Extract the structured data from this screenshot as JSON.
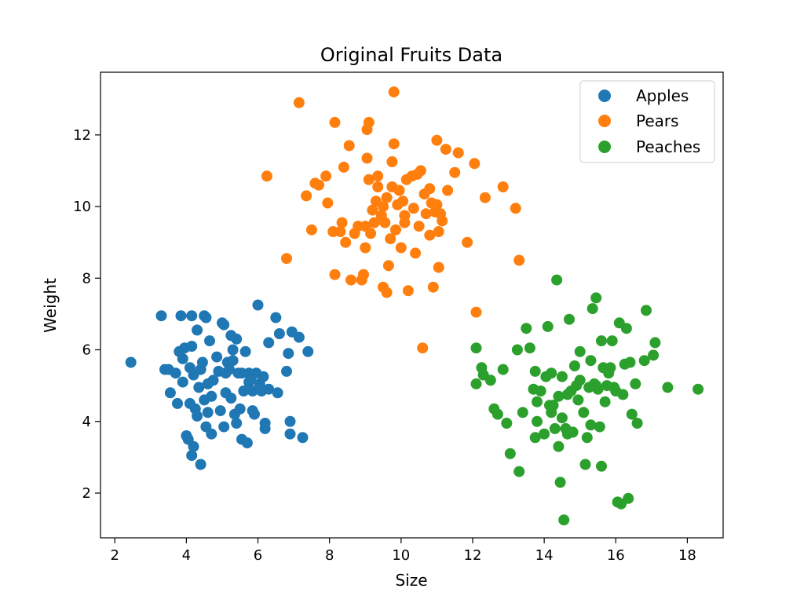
{
  "chart_data": {
    "type": "scatter",
    "title": "Original Fruits Data",
    "xlabel": "Size",
    "ylabel": "Weight",
    "xlim": [
      1.6,
      19.0
    ],
    "ylim": [
      0.75,
      13.75
    ],
    "xticks": [
      2,
      4,
      6,
      8,
      10,
      12,
      14,
      16,
      18
    ],
    "yticks": [
      2,
      4,
      6,
      8,
      10,
      12
    ],
    "grid": false,
    "legend": "top-right",
    "series": [
      {
        "name": "Apples",
        "color": "#1f77b4",
        "points": [
          [
            2.45,
            5.65
          ],
          [
            3.3,
            6.95
          ],
          [
            3.4,
            5.45
          ],
          [
            3.5,
            5.45
          ],
          [
            3.55,
            4.8
          ],
          [
            3.7,
            5.35
          ],
          [
            3.75,
            4.5
          ],
          [
            3.8,
            5.95
          ],
          [
            3.85,
            6.95
          ],
          [
            3.9,
            5.75
          ],
          [
            3.9,
            5.1
          ],
          [
            3.95,
            6.05
          ],
          [
            4.0,
            3.6
          ],
          [
            4.05,
            3.5
          ],
          [
            4.1,
            5.5
          ],
          [
            4.1,
            4.5
          ],
          [
            4.15,
            6.1
          ],
          [
            4.15,
            6.95
          ],
          [
            4.15,
            3.05
          ],
          [
            4.2,
            5.3
          ],
          [
            4.2,
            3.3
          ],
          [
            4.25,
            4.35
          ],
          [
            4.3,
            4.15
          ],
          [
            4.3,
            6.55
          ],
          [
            4.35,
            4.95
          ],
          [
            4.4,
            5.45
          ],
          [
            4.4,
            2.8
          ],
          [
            4.45,
            5.65
          ],
          [
            4.5,
            6.95
          ],
          [
            4.5,
            4.6
          ],
          [
            4.55,
            6.9
          ],
          [
            4.55,
            3.85
          ],
          [
            4.6,
            4.25
          ],
          [
            4.6,
            5.05
          ],
          [
            4.65,
            6.25
          ],
          [
            4.7,
            4.7
          ],
          [
            4.7,
            3.65
          ],
          [
            4.75,
            5.15
          ],
          [
            4.85,
            5.8
          ],
          [
            4.9,
            5.4
          ],
          [
            4.95,
            4.3
          ],
          [
            5.0,
            6.75
          ],
          [
            5.05,
            6.7
          ],
          [
            5.05,
            3.85
          ],
          [
            5.1,
            5.35
          ],
          [
            5.1,
            4.8
          ],
          [
            5.15,
            5.65
          ],
          [
            5.2,
            5.45
          ],
          [
            5.25,
            6.4
          ],
          [
            5.25,
            4.65
          ],
          [
            5.3,
            6.0
          ],
          [
            5.3,
            5.7
          ],
          [
            5.35,
            4.2
          ],
          [
            5.4,
            6.3
          ],
          [
            5.4,
            3.95
          ],
          [
            5.45,
            5.35
          ],
          [
            5.5,
            4.35
          ],
          [
            5.55,
            3.5
          ],
          [
            5.6,
            4.85
          ],
          [
            5.65,
            5.95
          ],
          [
            5.7,
            3.4
          ],
          [
            5.75,
            5.35
          ],
          [
            5.75,
            5.1
          ],
          [
            5.8,
            5.2
          ],
          [
            5.85,
            4.85
          ],
          [
            5.85,
            4.3
          ],
          [
            5.9,
            4.2
          ],
          [
            5.95,
            5.35
          ],
          [
            6.0,
            7.25
          ],
          [
            6.05,
            5.05
          ],
          [
            6.1,
            4.85
          ],
          [
            6.15,
            5.25
          ],
          [
            6.2,
            3.95
          ],
          [
            6.2,
            3.8
          ],
          [
            6.3,
            6.2
          ],
          [
            6.3,
            4.9
          ],
          [
            6.5,
            6.9
          ],
          [
            6.55,
            4.8
          ],
          [
            6.6,
            6.45
          ],
          [
            6.8,
            5.4
          ],
          [
            6.85,
            5.9
          ],
          [
            6.9,
            4.0
          ],
          [
            6.9,
            3.65
          ],
          [
            6.95,
            6.5
          ],
          [
            7.15,
            6.35
          ],
          [
            7.25,
            3.55
          ],
          [
            7.4,
            5.95
          ],
          [
            5.55,
            5.35
          ]
        ]
      },
      {
        "name": "Pears",
        "color": "#ff7f0e",
        "points": [
          [
            6.25,
            10.85
          ],
          [
            6.8,
            8.55
          ],
          [
            7.15,
            12.9
          ],
          [
            7.35,
            10.3
          ],
          [
            7.5,
            9.35
          ],
          [
            7.6,
            10.65
          ],
          [
            7.7,
            10.6
          ],
          [
            7.9,
            10.85
          ],
          [
            7.95,
            10.1
          ],
          [
            8.1,
            9.3
          ],
          [
            8.15,
            8.1
          ],
          [
            8.15,
            12.35
          ],
          [
            8.3,
            9.3
          ],
          [
            8.35,
            9.55
          ],
          [
            8.4,
            11.1
          ],
          [
            8.45,
            9.0
          ],
          [
            8.55,
            11.7
          ],
          [
            8.6,
            7.95
          ],
          [
            8.7,
            9.25
          ],
          [
            8.8,
            9.45
          ],
          [
            8.9,
            7.95
          ],
          [
            8.95,
            8.1
          ],
          [
            9.0,
            8.85
          ],
          [
            9.0,
            9.45
          ],
          [
            9.05,
            11.35
          ],
          [
            9.05,
            12.15
          ],
          [
            9.1,
            12.35
          ],
          [
            9.15,
            9.25
          ],
          [
            9.2,
            9.9
          ],
          [
            9.25,
            9.55
          ],
          [
            9.3,
            10.15
          ],
          [
            9.35,
            10.55
          ],
          [
            9.35,
            10.85
          ],
          [
            9.45,
            9.75
          ],
          [
            9.5,
            10.0
          ],
          [
            9.5,
            7.75
          ],
          [
            9.55,
            9.55
          ],
          [
            9.6,
            7.6
          ],
          [
            9.6,
            10.25
          ],
          [
            9.65,
            8.35
          ],
          [
            9.7,
            9.1
          ],
          [
            9.75,
            11.25
          ],
          [
            9.75,
            10.55
          ],
          [
            9.8,
            13.2
          ],
          [
            9.8,
            11.75
          ],
          [
            9.85,
            9.35
          ],
          [
            9.9,
            10.05
          ],
          [
            9.95,
            10.45
          ],
          [
            10.0,
            8.85
          ],
          [
            10.05,
            10.15
          ],
          [
            10.1,
            9.75
          ],
          [
            10.1,
            9.55
          ],
          [
            10.15,
            10.75
          ],
          [
            10.2,
            7.65
          ],
          [
            10.3,
            10.85
          ],
          [
            10.35,
            9.95
          ],
          [
            10.4,
            8.7
          ],
          [
            10.45,
            10.9
          ],
          [
            10.5,
            9.45
          ],
          [
            10.55,
            11.0
          ],
          [
            10.6,
            6.05
          ],
          [
            10.65,
            10.35
          ],
          [
            10.7,
            9.8
          ],
          [
            10.8,
            10.5
          ],
          [
            10.8,
            9.2
          ],
          [
            10.85,
            10.1
          ],
          [
            10.9,
            7.75
          ],
          [
            10.95,
            9.85
          ],
          [
            11.0,
            11.85
          ],
          [
            11.05,
            9.3
          ],
          [
            11.05,
            8.3
          ],
          [
            11.1,
            9.8
          ],
          [
            11.15,
            9.6
          ],
          [
            11.25,
            11.6
          ],
          [
            11.3,
            10.45
          ],
          [
            11.5,
            10.95
          ],
          [
            11.6,
            11.5
          ],
          [
            11.85,
            9.0
          ],
          [
            12.05,
            11.2
          ],
          [
            12.1,
            7.05
          ],
          [
            12.35,
            10.25
          ],
          [
            12.85,
            10.55
          ],
          [
            13.2,
            9.95
          ],
          [
            13.3,
            8.5
          ],
          [
            9.1,
            10.75
          ],
          [
            11.0,
            10.05
          ]
        ]
      },
      {
        "name": "Peaches",
        "color": "#2ca02c",
        "points": [
          [
            12.1,
            6.05
          ],
          [
            12.1,
            5.05
          ],
          [
            12.25,
            5.5
          ],
          [
            12.3,
            5.3
          ],
          [
            12.5,
            5.15
          ],
          [
            12.6,
            4.35
          ],
          [
            12.7,
            4.2
          ],
          [
            12.85,
            5.45
          ],
          [
            12.95,
            3.95
          ],
          [
            13.05,
            3.1
          ],
          [
            13.25,
            6.0
          ],
          [
            13.3,
            2.6
          ],
          [
            13.4,
            4.25
          ],
          [
            13.5,
            6.6
          ],
          [
            13.6,
            6.05
          ],
          [
            13.7,
            4.9
          ],
          [
            13.75,
            3.55
          ],
          [
            13.75,
            5.4
          ],
          [
            13.8,
            4.55
          ],
          [
            13.8,
            4.0
          ],
          [
            13.9,
            4.85
          ],
          [
            14.0,
            3.65
          ],
          [
            14.05,
            5.25
          ],
          [
            14.1,
            6.65
          ],
          [
            14.15,
            4.45
          ],
          [
            14.2,
            4.25
          ],
          [
            14.25,
            4.45
          ],
          [
            14.3,
            3.8
          ],
          [
            14.35,
            7.95
          ],
          [
            14.4,
            4.7
          ],
          [
            14.4,
            3.3
          ],
          [
            14.45,
            2.3
          ],
          [
            14.5,
            5.25
          ],
          [
            14.5,
            4.1
          ],
          [
            14.55,
            1.25
          ],
          [
            14.6,
            3.8
          ],
          [
            14.65,
            4.75
          ],
          [
            14.7,
            6.85
          ],
          [
            14.75,
            4.85
          ],
          [
            14.8,
            3.7
          ],
          [
            14.85,
            5.55
          ],
          [
            14.9,
            5.0
          ],
          [
            15.0,
            5.15
          ],
          [
            15.0,
            5.95
          ],
          [
            15.1,
            4.25
          ],
          [
            15.15,
            2.8
          ],
          [
            15.2,
            3.55
          ],
          [
            15.25,
            4.95
          ],
          [
            15.3,
            3.9
          ],
          [
            15.3,
            5.7
          ],
          [
            15.35,
            7.15
          ],
          [
            15.4,
            5.05
          ],
          [
            15.45,
            7.45
          ],
          [
            15.45,
            5.0
          ],
          [
            15.5,
            4.9
          ],
          [
            15.55,
            3.85
          ],
          [
            15.6,
            2.75
          ],
          [
            15.6,
            6.25
          ],
          [
            15.65,
            5.5
          ],
          [
            15.7,
            4.55
          ],
          [
            15.8,
            5.35
          ],
          [
            15.85,
            5.5
          ],
          [
            15.9,
            6.25
          ],
          [
            15.95,
            4.95
          ],
          [
            16.0,
            4.85
          ],
          [
            16.05,
            1.75
          ],
          [
            16.1,
            6.75
          ],
          [
            16.15,
            1.7
          ],
          [
            16.2,
            4.75
          ],
          [
            16.25,
            5.6
          ],
          [
            16.3,
            6.6
          ],
          [
            16.35,
            1.85
          ],
          [
            16.4,
            5.65
          ],
          [
            16.45,
            4.2
          ],
          [
            16.55,
            5.05
          ],
          [
            16.6,
            3.95
          ],
          [
            16.8,
            5.7
          ],
          [
            16.85,
            7.1
          ],
          [
            17.05,
            5.85
          ],
          [
            17.1,
            6.2
          ],
          [
            17.45,
            4.95
          ],
          [
            18.3,
            4.9
          ],
          [
            14.2,
            5.35
          ],
          [
            14.95,
            4.6
          ],
          [
            15.75,
            5.0
          ],
          [
            14.65,
            3.65
          ]
        ]
      }
    ]
  }
}
